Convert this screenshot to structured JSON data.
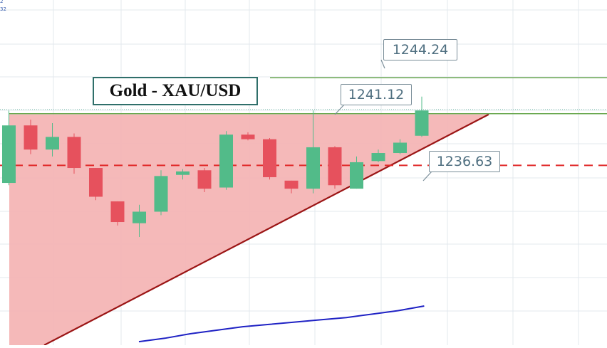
{
  "chart_data": {
    "type": "candlestick",
    "title": "Gold - XAU/USD",
    "xlabel": "",
    "ylabel": "",
    "ylim": [
      1221.0,
      1251.0
    ],
    "grid": true,
    "candles": [
      {
        "open": 1235.1,
        "high": 1241.4,
        "low": 1234.9,
        "close": 1240.1
      },
      {
        "open": 1240.1,
        "high": 1240.6,
        "low": 1237.6,
        "close": 1238.0
      },
      {
        "open": 1238.0,
        "high": 1240.3,
        "low": 1237.4,
        "close": 1239.1
      },
      {
        "open": 1239.1,
        "high": 1239.4,
        "low": 1235.9,
        "close": 1236.4
      },
      {
        "open": 1236.4,
        "high": 1236.4,
        "low": 1233.6,
        "close": 1233.9
      },
      {
        "open": 1233.5,
        "high": 1233.5,
        "low": 1231.4,
        "close": 1231.7
      },
      {
        "open": 1231.6,
        "high": 1233.2,
        "low": 1230.4,
        "close": 1232.6
      },
      {
        "open": 1232.6,
        "high": 1236.2,
        "low": 1232.3,
        "close": 1235.7
      },
      {
        "open": 1235.8,
        "high": 1236.3,
        "low": 1235.4,
        "close": 1236.1
      },
      {
        "open": 1236.2,
        "high": 1236.4,
        "low": 1234.3,
        "close": 1234.6
      },
      {
        "open": 1234.7,
        "high": 1239.6,
        "low": 1234.5,
        "close": 1239.3
      },
      {
        "open": 1239.3,
        "high": 1239.5,
        "low": 1238.8,
        "close": 1238.9
      },
      {
        "open": 1238.9,
        "high": 1239.0,
        "low": 1235.4,
        "close": 1235.6
      },
      {
        "open": 1235.3,
        "high": 1235.3,
        "low": 1234.2,
        "close": 1234.6
      },
      {
        "open": 1234.6,
        "high": 1241.4,
        "low": 1234.2,
        "close": 1238.2
      },
      {
        "open": 1238.2,
        "high": 1238.3,
        "low": 1234.6,
        "close": 1234.9
      },
      {
        "open": 1234.6,
        "high": 1237.4,
        "low": 1234.6,
        "close": 1236.9
      },
      {
        "open": 1237.0,
        "high": 1238.0,
        "low": 1236.9,
        "close": 1237.7
      },
      {
        "open": 1237.7,
        "high": 1238.9,
        "low": 1237.6,
        "close": 1238.6
      },
      {
        "open": 1239.2,
        "high": 1242.6,
        "low": 1239.1,
        "close": 1241.4
      }
    ],
    "levels": [
      {
        "label": "1244.24",
        "value": 1244.24,
        "style": "solid",
        "color": "#6aa84f"
      },
      {
        "label": "1241.12",
        "value": 1241.12,
        "style": "solid",
        "color": "#6aa84f"
      },
      {
        "label": "1236.63",
        "value": 1236.63,
        "style": "dashed",
        "color": "#e02828"
      }
    ],
    "pattern": "ascending triangle",
    "moving_average": [
      1221.3,
      1221.6,
      1222.0,
      1222.3,
      1222.6,
      1222.8,
      1223.0,
      1223.2,
      1223.4,
      1223.7,
      1224.0,
      1224.4
    ]
  },
  "colors": {
    "bull": "#52bb89",
    "bear": "#e6515d",
    "triangle_fill": "#f4b5b5",
    "trendline": "#9b1515",
    "moving_average": "#1f22c4",
    "grid": "#e3e8ee"
  },
  "corner_ticks": [
    "2",
    "32"
  ]
}
